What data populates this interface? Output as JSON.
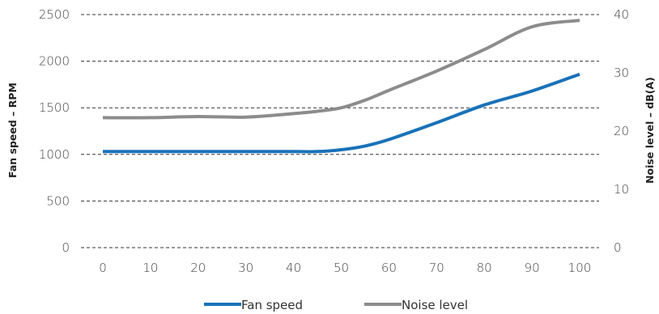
{
  "chart_data": {
    "type": "line",
    "title": "",
    "xlabel": "",
    "ylabel": "Fan speed – RPM",
    "y2label": "Noise level – dB(A)",
    "x": [
      0,
      10,
      20,
      30,
      40,
      45,
      50,
      55,
      60,
      70,
      80,
      90,
      100
    ],
    "xticks": [
      "0",
      "10",
      "20",
      "30",
      "40",
      "50",
      "60",
      "70",
      "80",
      "90",
      "100"
    ],
    "xlim": [
      0,
      100
    ],
    "ylim": [
      0,
      2500
    ],
    "y2lim": [
      0,
      40
    ],
    "yticks": [
      "0",
      "500",
      "1000",
      "1500",
      "2000",
      "2500"
    ],
    "y2ticks": [
      "0",
      "10",
      "20",
      "30",
      "40"
    ],
    "grid": true,
    "legend": "bottom",
    "series": [
      {
        "name": "Fan speed",
        "axis": "left",
        "color": "#1a72b8",
        "values": [
          1030,
          1030,
          1030,
          1030,
          1030,
          1030,
          1050,
          1090,
          1160,
          1340,
          1530,
          1680,
          1860
        ]
      },
      {
        "name": "Noise level",
        "axis": "right",
        "color": "#8c8c8c",
        "values": [
          22.3,
          22.3,
          22.5,
          22.4,
          23.0,
          23.4,
          24.0,
          25.3,
          27.0,
          30.3,
          34.0,
          37.9,
          39.0
        ]
      }
    ]
  }
}
